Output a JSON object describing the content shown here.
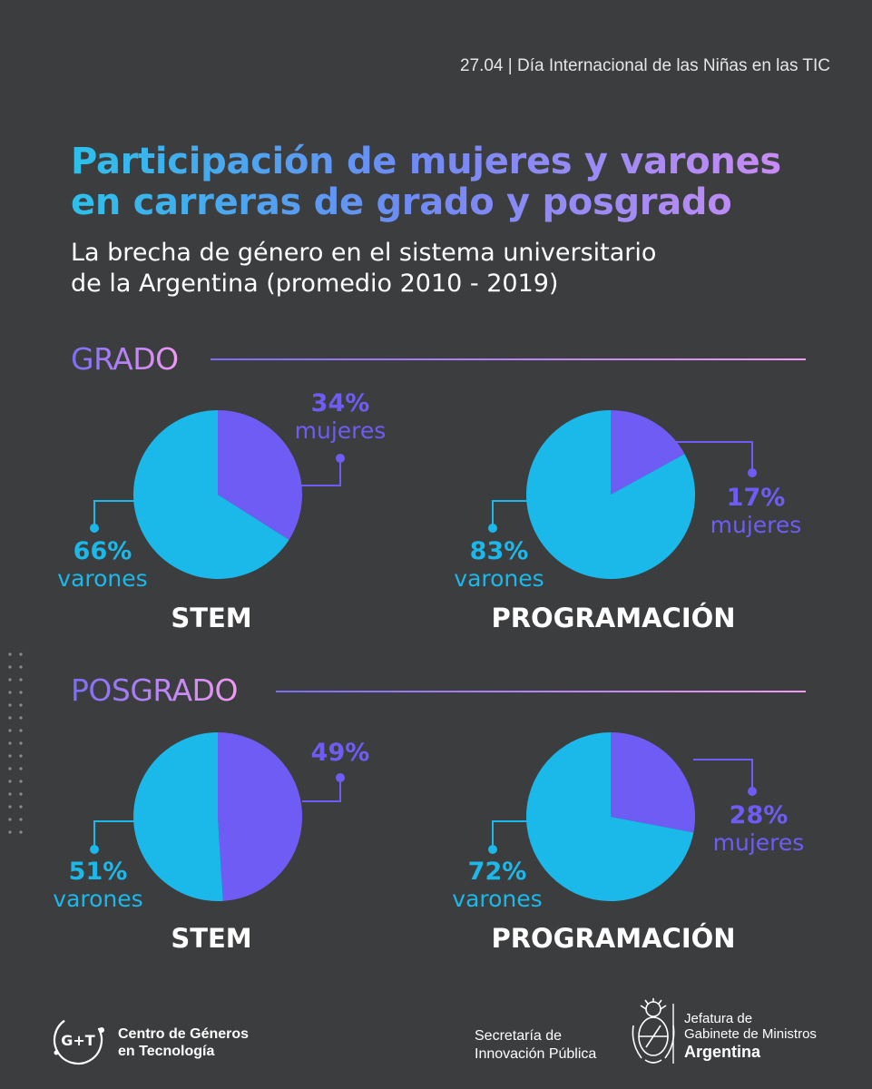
{
  "topbar": {
    "text": "27.04 | Día Internacional de las Niñas en las TIC"
  },
  "header": {
    "title_lines": [
      "Participación de mujeres y varones",
      "en carreras de grado y posgrado"
    ],
    "subtitle_lines": [
      "La brecha de género en el sistema universitario",
      "de la Argentina (promedio 2010 - 2019)"
    ]
  },
  "colors": {
    "background": "#3c3d3f",
    "varones": "#1ab9ea",
    "mujeres": "#6f5cf4",
    "accent_pink": "#f19af2"
  },
  "sections": [
    {
      "label": "GRADO"
    },
    {
      "label": "POSGRADO"
    }
  ],
  "chart_data": [
    {
      "type": "pie",
      "section": "GRADO",
      "title": "STEM",
      "slices": [
        {
          "pct": "34%",
          "label": "mujeres",
          "value": 34
        },
        {
          "pct": "66%",
          "label": "varones",
          "value": 66
        }
      ]
    },
    {
      "type": "pie",
      "section": "GRADO",
      "title": "PROGRAMACIÓN",
      "slices": [
        {
          "pct": "17%",
          "label": "mujeres",
          "value": 17
        },
        {
          "pct": "83%",
          "label": "varones",
          "value": 83
        }
      ]
    },
    {
      "type": "pie",
      "section": "POSGRADO",
      "title": "STEM",
      "slices": [
        {
          "pct": "49%",
          "label": "",
          "value": 49
        },
        {
          "pct": "51%",
          "label": "varones",
          "value": 51
        }
      ]
    },
    {
      "type": "pie",
      "section": "POSGRADO",
      "title": "PROGRAMACIÓN",
      "slices": [
        {
          "pct": "28%",
          "label": "mujeres",
          "value": 28
        },
        {
          "pct": "72%",
          "label": "varones",
          "value": 72
        }
      ]
    }
  ],
  "footer": {
    "logo_left": {
      "mark": "G+T",
      "line1": "Centro de Géneros",
      "line2": "en Tecnología"
    },
    "secretaria": {
      "line1": "Secretaría de",
      "line2": "Innovación Pública"
    },
    "jefatura": {
      "line1": "Jefatura de",
      "line2": "Gabinete de Ministros",
      "line3": "Argentina",
      "seal_icon": "argentina-coat-of-arms-icon"
    }
  }
}
